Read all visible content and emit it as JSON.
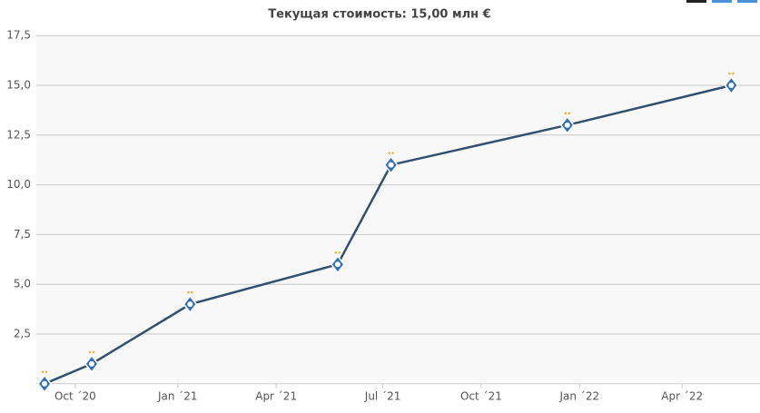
{
  "chart_data": {
    "type": "line",
    "title": "Текущая стоимость: 15,00 млн €",
    "x": [
      2020.675,
      2020.79,
      2021.03,
      2021.39,
      2021.52,
      2021.95,
      2022.35
    ],
    "series": [
      {
        "color": "#34506f",
        "values": [
          0,
          1,
          4,
          6,
          11,
          13,
          15
        ]
      }
    ],
    "xlim": [
      2020.655,
      2022.42
    ],
    "xticks": [
      {
        "value": 2020.75,
        "label": "Oct ´20"
      },
      {
        "value": 2021.0,
        "label": "Jan ´21"
      },
      {
        "value": 2021.24,
        "label": "Apr ´21"
      },
      {
        "value": 2021.5,
        "label": "Jul ´21"
      },
      {
        "value": 2021.74,
        "label": "Oct ´21"
      },
      {
        "value": 2021.98,
        "label": "Jan ´22"
      },
      {
        "value": 2022.23,
        "label": "Apr ´22"
      }
    ],
    "ylim": [
      0,
      17.5
    ],
    "yticks": [
      {
        "value": 2.5,
        "label": "2,5"
      },
      {
        "value": 5,
        "label": "5,0"
      },
      {
        "value": 7.5,
        "label": "7,5"
      },
      {
        "value": 10,
        "label": "10,0"
      },
      {
        "value": 12.5,
        "label": "12,5"
      },
      {
        "value": 15,
        "label": "15,0"
      },
      {
        "value": 17.5,
        "label": "17,5"
      }
    ],
    "grid": true
  }
}
